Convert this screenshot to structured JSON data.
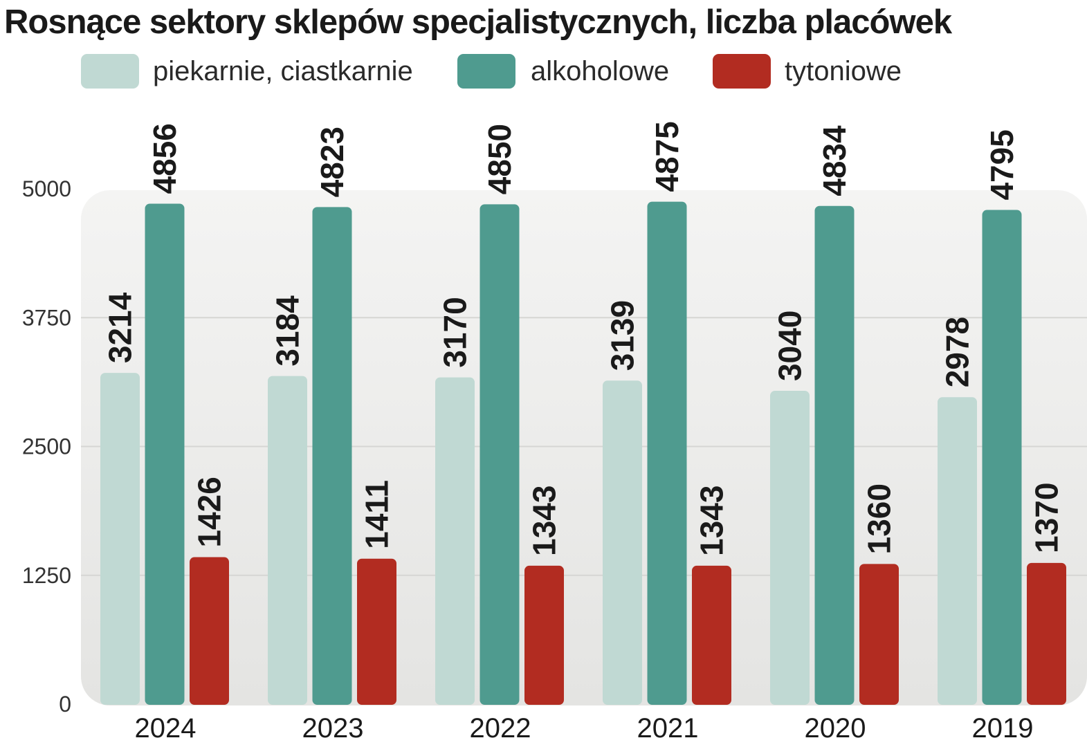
{
  "chart_data": {
    "type": "bar",
    "title": "Rosnące sektory sklepów specjalistycznych, liczba placówek",
    "categories": [
      "2024",
      "2023",
      "2022",
      "2021",
      "2020",
      "2019"
    ],
    "series": [
      {
        "name": "piekarnie, ciastkarnie",
        "color": "#c0d9d3",
        "values": [
          3214,
          3184,
          3170,
          3139,
          3040,
          2978
        ]
      },
      {
        "name": "alkoholowe",
        "color": "#4f9b8f",
        "values": [
          4856,
          4823,
          4850,
          4875,
          4834,
          4795
        ]
      },
      {
        "name": "tytoniowe",
        "color": "#b22c21",
        "values": [
          1426,
          1411,
          1343,
          1343,
          1360,
          1370
        ]
      }
    ],
    "ylim": [
      0,
      5000
    ],
    "yticks": [
      0,
      1250,
      2500,
      3750,
      5000
    ],
    "ytick_labels": [
      "0",
      "1250",
      "2500",
      "3750",
      "5000"
    ],
    "grid": true,
    "legend_position": "top",
    "xlabel": "",
    "ylabel": ""
  }
}
